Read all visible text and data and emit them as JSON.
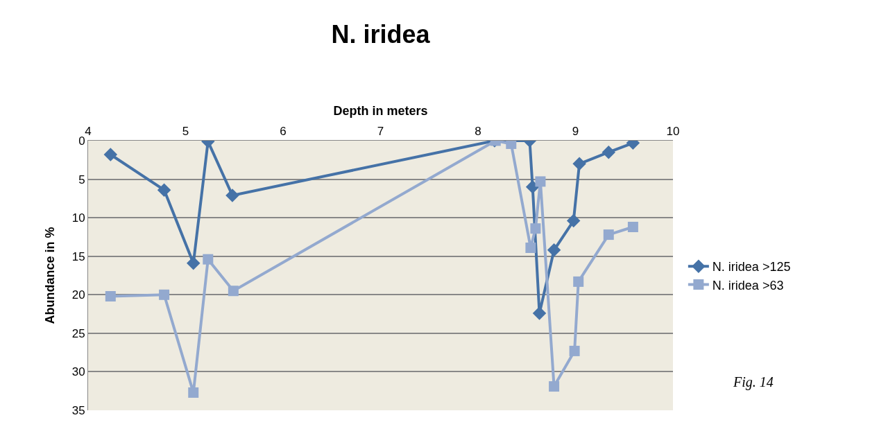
{
  "chart_data": {
    "type": "line",
    "title": "N. iridea",
    "xlabel": "Depth in meters",
    "ylabel": "Abundance in %",
    "xlim": [
      4,
      10
    ],
    "xticks": [
      4,
      5,
      6,
      7,
      8,
      9,
      10
    ],
    "ylim": [
      35,
      0
    ],
    "yticks": [
      0,
      5,
      10,
      15,
      20,
      25,
      30,
      35
    ],
    "grid": "y",
    "legend": "right",
    "line_style": "solid",
    "annotations": [
      "Fig. 14"
    ],
    "series": [
      {
        "name": "N. iridea >125",
        "color": "#4572a7",
        "marker": "diamond",
        "x": [
          4.23,
          4.78,
          5.08,
          5.23,
          5.48,
          8.17,
          8.33,
          8.53,
          8.56,
          8.63,
          8.78,
          8.98,
          9.04,
          9.34,
          9.59
        ],
        "values": [
          1.8,
          6.4,
          15.9,
          0.1,
          7.1,
          0,
          0,
          0,
          6,
          22.4,
          14.2,
          10.4,
          3,
          1.5,
          0.3
        ]
      },
      {
        "name": "N. iridea >63",
        "color": "#93a9cf",
        "marker": "square",
        "x": [
          4.23,
          4.78,
          5.08,
          5.23,
          5.49,
          8.18,
          8.34,
          8.54,
          8.59,
          8.64,
          8.78,
          8.99,
          9.03,
          9.34,
          9.59
        ],
        "values": [
          20.2,
          20,
          32.7,
          15.4,
          19.5,
          0,
          0.4,
          13.9,
          11.4,
          5.3,
          31.9,
          27.3,
          18.3,
          12.2,
          11.2
        ]
      }
    ]
  }
}
